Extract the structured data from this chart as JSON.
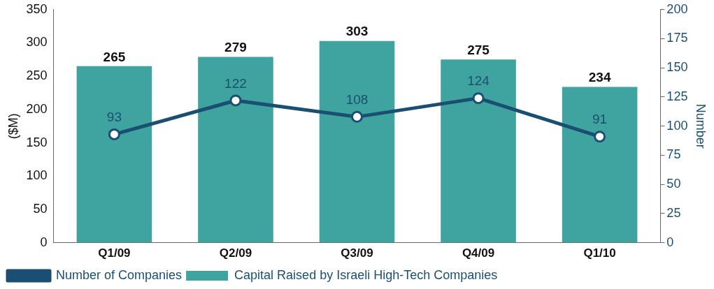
{
  "chart_data": {
    "type": "bar",
    "categories": [
      "Q1/09",
      "Q2/09",
      "Q3/09",
      "Q4/09",
      "Q1/10"
    ],
    "series": [
      {
        "name": "Number of Companies",
        "type": "line",
        "axis": "y2",
        "color": "#1b4f72",
        "values": [
          93,
          122,
          108,
          124,
          91
        ]
      },
      {
        "name": "Capital Raised by Israeli High-Tech Companies",
        "color": "#3fa3a0",
        "values": [
          265,
          279,
          303,
          275,
          234
        ]
      }
    ],
    "ylabel": "($M)",
    "y2label": "Number",
    "ylim": [
      0,
      350
    ],
    "yticks": [
      0,
      50,
      100,
      150,
      200,
      250,
      300,
      350
    ],
    "y2lim": [
      0,
      200
    ],
    "y2ticks": [
      0,
      25,
      50,
      75,
      100,
      125,
      150,
      175,
      200
    ],
    "data_labels": true,
    "grid": false,
    "legend": "bottom left",
    "marker": "circle"
  }
}
